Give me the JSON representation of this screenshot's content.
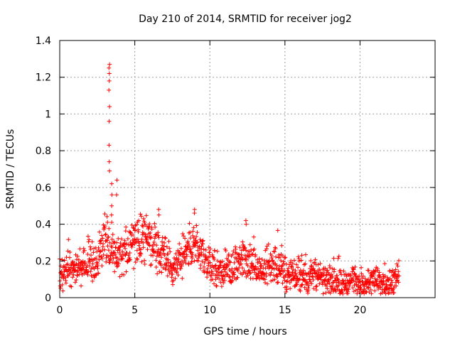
{
  "chart_data": {
    "type": "scatter",
    "title": "Day 210 of 2014, SRMTID for receiver jog2",
    "xlabel": "GPS time / hours",
    "ylabel": "SRMTID / TECUs",
    "xlim": [
      0,
      25
    ],
    "ylim": [
      0,
      1.4
    ],
    "xticks": [
      0,
      5,
      10,
      15,
      20
    ],
    "xtick_labels": [
      "0",
      "5",
      "10",
      "15",
      "20"
    ],
    "yticks": [
      0,
      0.2,
      0.4,
      0.6,
      0.8,
      1.0,
      1.2,
      1.4
    ],
    "ytick_labels": [
      "0",
      "0.2",
      "0.4",
      "0.6",
      "0.8",
      "1",
      "1.2",
      "1.4"
    ],
    "grid": true,
    "marker": "+",
    "color": "#ff0000",
    "series": [
      {
        "name": "SRMTID",
        "envelope_hours": [
          0,
          0.5,
          1.0,
          1.5,
          2.0,
          2.5,
          2.8,
          3.0,
          3.2,
          3.5,
          4.0,
          4.5,
          5.0,
          5.5,
          6.0,
          6.5,
          7.0,
          7.5,
          8.0,
          8.5,
          9.0,
          9.5,
          10.0,
          10.5,
          11.0,
          11.5,
          12.0,
          12.5,
          13.0,
          13.5,
          14.0,
          14.5,
          15.0,
          15.5,
          16.0,
          16.5,
          17.0,
          17.5,
          18.0,
          18.5,
          19.0,
          19.5,
          20.0,
          20.5,
          21.0,
          21.5,
          22.0,
          22.6
        ],
        "envelope_tecu": [
          0.12,
          0.15,
          0.15,
          0.17,
          0.19,
          0.21,
          0.26,
          0.33,
          0.29,
          0.24,
          0.22,
          0.25,
          0.32,
          0.32,
          0.3,
          0.27,
          0.22,
          0.17,
          0.2,
          0.26,
          0.27,
          0.22,
          0.17,
          0.15,
          0.16,
          0.14,
          0.2,
          0.21,
          0.15,
          0.14,
          0.18,
          0.18,
          0.13,
          0.12,
          0.12,
          0.11,
          0.13,
          0.1,
          0.09,
          0.08,
          0.08,
          0.09,
          0.05,
          0.08,
          0.1,
          0.08,
          0.09,
          0.11
        ],
        "spikes": [
          {
            "x": 3.3,
            "values": [
              1.27,
              1.25,
              1.22,
              1.18,
              1.13,
              1.04,
              0.96,
              0.83,
              0.74,
              0.69
            ]
          },
          {
            "x": 3.45,
            "values": [
              0.62,
              0.56,
              0.5,
              0.45,
              0.41
            ]
          },
          {
            "x": 3.8,
            "values": [
              0.64,
              0.56
            ]
          },
          {
            "x": 6.6,
            "values": [
              0.48,
              0.45
            ]
          },
          {
            "x": 9.0,
            "values": [
              0.48,
              0.46
            ]
          },
          {
            "x": 12.4,
            "values": [
              0.42,
              0.4
            ]
          }
        ]
      }
    ]
  }
}
